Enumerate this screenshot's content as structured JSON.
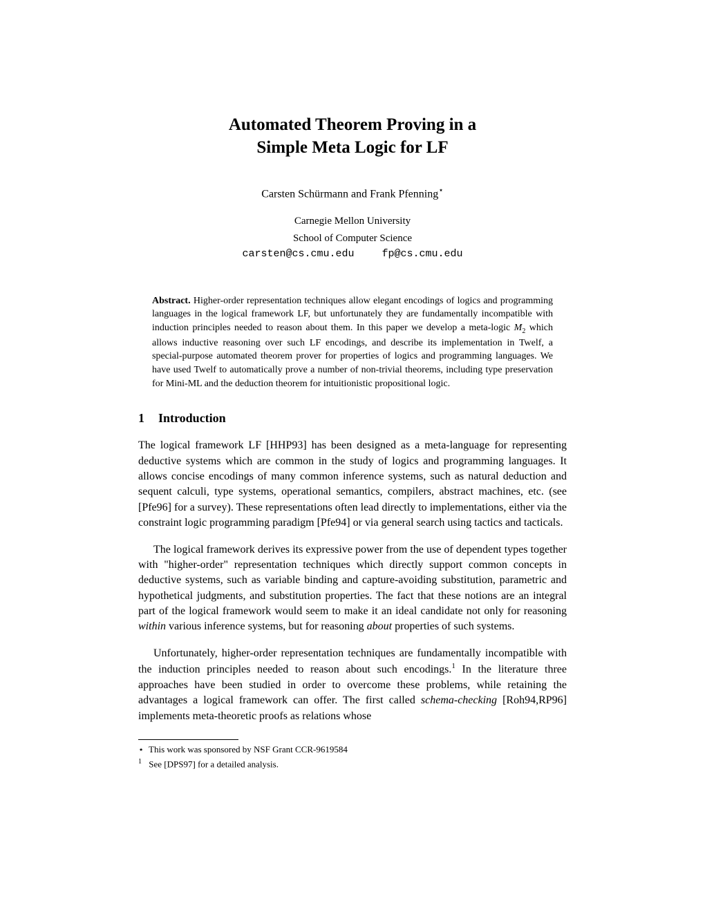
{
  "title_line1": "Automated Theorem Proving in a",
  "title_line2": "Simple Meta Logic for LF",
  "authors": "Carsten Schürmann and Frank Pfenning",
  "author_star": "⋆",
  "affiliation_line1": "Carnegie Mellon University",
  "affiliation_line2": "School of Computer Science",
  "email1": "carsten@cs.cmu.edu",
  "email2": "fp@cs.cmu.edu",
  "abstract_label": "Abstract.",
  "abstract_text_1": " Higher-order representation techniques allow elegant encodings of logics and programming languages in the logical framework LF, but unfortunately they are fundamentally incompatible with induction principles needed to reason about them. In this paper we develop a meta-logic ",
  "abstract_m2_cal": "M",
  "abstract_m2_sub": "2",
  "abstract_text_2": " which allows inductive reasoning over such LF encodings, and describe its implementation in Twelf, a special-purpose automated theorem prover for properties of logics and programming languages. We have used Twelf to automatically prove a number of non-trivial theorems, including type preservation for Mini-ML and the deduction theorem for intuitionistic propositional logic.",
  "section1_num": "1",
  "section1_title": "Introduction",
  "para1": "The logical framework LF [HHP93] has been designed as a meta-language for representing deductive systems which are common in the study of logics and programming languages. It allows concise encodings of many common inference systems, such as natural deduction and sequent calculi, type systems, operational semantics, compilers, abstract machines, etc. (see [Pfe96] for a survey). These representations often lead directly to implementations, either via the constraint logic programming paradigm [Pfe94] or via general search using tactics and tacticals.",
  "para2_a": "The logical framework derives its expressive power from the use of dependent types together with \"higher-order\" representation techniques which directly support common concepts in deductive systems, such as variable binding and capture-avoiding substitution, parametric and hypothetical judgments, and substitution properties. The fact that these notions are an integral part of the logical framework would seem to make it an ideal candidate not only for reasoning ",
  "para2_within": "within",
  "para2_b": " various inference systems, but for reasoning ",
  "para2_about": "about",
  "para2_c": " properties of such systems.",
  "para3_a": "Unfortunately, higher-order representation techniques are fundamentally incompatible with the induction principles needed to reason about such encodings.",
  "para3_sup": "1",
  "para3_b": " In the literature three approaches have been studied in order to overcome these problems, while retaining the advantages a logical framework can offer. The first called ",
  "para3_schema": "schema-checking",
  "para3_c": " [Roh94,RP96] implements meta-theoretic proofs as relations whose",
  "footnote_star_marker": "⋆",
  "footnote_star": " This work was sponsored by NSF Grant CCR-9619584",
  "footnote_1_marker": "1",
  "footnote_1": " See [DPS97] for a detailed analysis."
}
